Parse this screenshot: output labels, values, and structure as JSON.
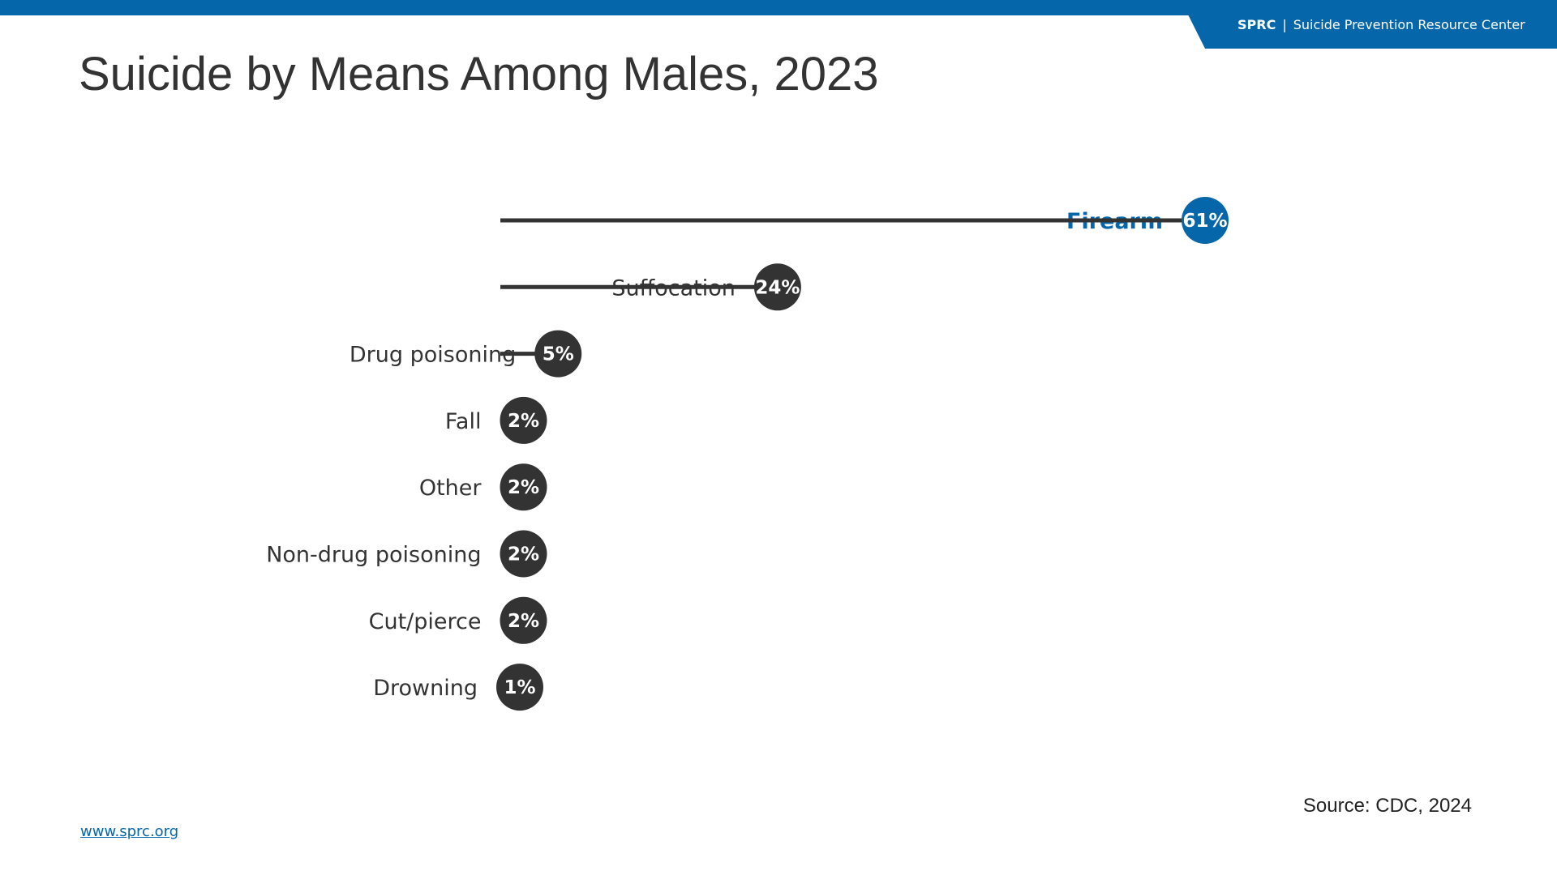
{
  "header": {
    "brand_short": "SPRC",
    "separator": "|",
    "brand_full": "Suicide Prevention Resource Center"
  },
  "footer": {
    "source": "Source: CDC, 2024",
    "website": "www.sprc.org"
  },
  "colors": {
    "brand_blue": "#0566a9",
    "dark": "#333333"
  },
  "chart_data": {
    "type": "bar",
    "title": "Suicide by Means Among Males, 2023",
    "categories": [
      "Firearm",
      "Suffocation",
      "Drug poisoning",
      "Fall",
      "Other",
      "Non-drug poisoning",
      "Cut/pierce",
      "Drowning"
    ],
    "values": [
      61,
      24,
      5,
      2,
      2,
      2,
      2,
      1
    ],
    "value_labels": [
      "61%",
      "24%",
      "5%",
      "2%",
      "2%",
      "2%",
      "2%",
      "1%"
    ],
    "highlight_category": "Firearm",
    "style": "lollipop",
    "orientation": "horizontal",
    "xlim": [
      0,
      61
    ],
    "grid": false
  }
}
